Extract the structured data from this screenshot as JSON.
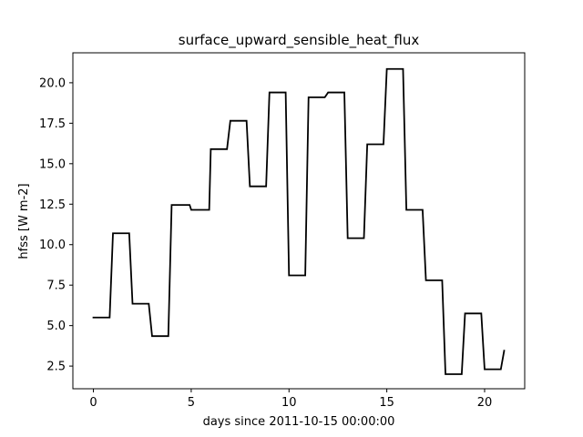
{
  "chart_data": {
    "type": "line",
    "title": "surface_upward_sensible_heat_flux",
    "xlabel": "days since 2011-10-15 00:00:00",
    "ylabel": "hfss [W m-2]",
    "xlim": [
      -1.05,
      22.05
    ],
    "ylim": [
      1.1,
      21.85
    ],
    "x_ticks": [
      0,
      5,
      10,
      15,
      20
    ],
    "x_tick_labels": [
      "0",
      "5",
      "10",
      "15",
      "20"
    ],
    "y_ticks": [
      2.5,
      5.0,
      7.5,
      10.0,
      12.5,
      15.0,
      17.5,
      20.0
    ],
    "y_tick_labels": [
      "2.5",
      "5.0",
      "7.5",
      "10.0",
      "12.5",
      "15.0",
      "17.5",
      "20.0"
    ],
    "grid": false,
    "line_color": "#000000",
    "series": [
      {
        "x": [
          0,
          0.83,
          1.0,
          1.83,
          2.0,
          2.83,
          3.0,
          3.83,
          4.0,
          4.92,
          5.0,
          5.92,
          6.0,
          6.83,
          7.0,
          7.83,
          8.0,
          8.83,
          9.0,
          9.83,
          10.0,
          10.83,
          11.0,
          11.83,
          12.0,
          12.83,
          13.0,
          13.83,
          14.0,
          14.83,
          15.0,
          15.83,
          16.0,
          16.83,
          17.0,
          17.83,
          18.0,
          18.83,
          19.0,
          19.83,
          20.0,
          20.83,
          21.0
        ],
        "y": [
          5.5,
          5.5,
          10.7,
          10.7,
          6.35,
          6.35,
          4.35,
          4.35,
          12.45,
          12.45,
          12.15,
          12.15,
          15.9,
          15.9,
          17.65,
          17.65,
          13.6,
          13.6,
          19.4,
          19.4,
          8.1,
          8.1,
          19.1,
          19.1,
          19.4,
          19.4,
          10.4,
          10.4,
          16.2,
          16.2,
          20.85,
          20.85,
          12.15,
          12.15,
          7.8,
          7.8,
          2.0,
          2.0,
          5.75,
          5.75,
          2.3,
          2.3,
          3.45
        ]
      }
    ]
  }
}
